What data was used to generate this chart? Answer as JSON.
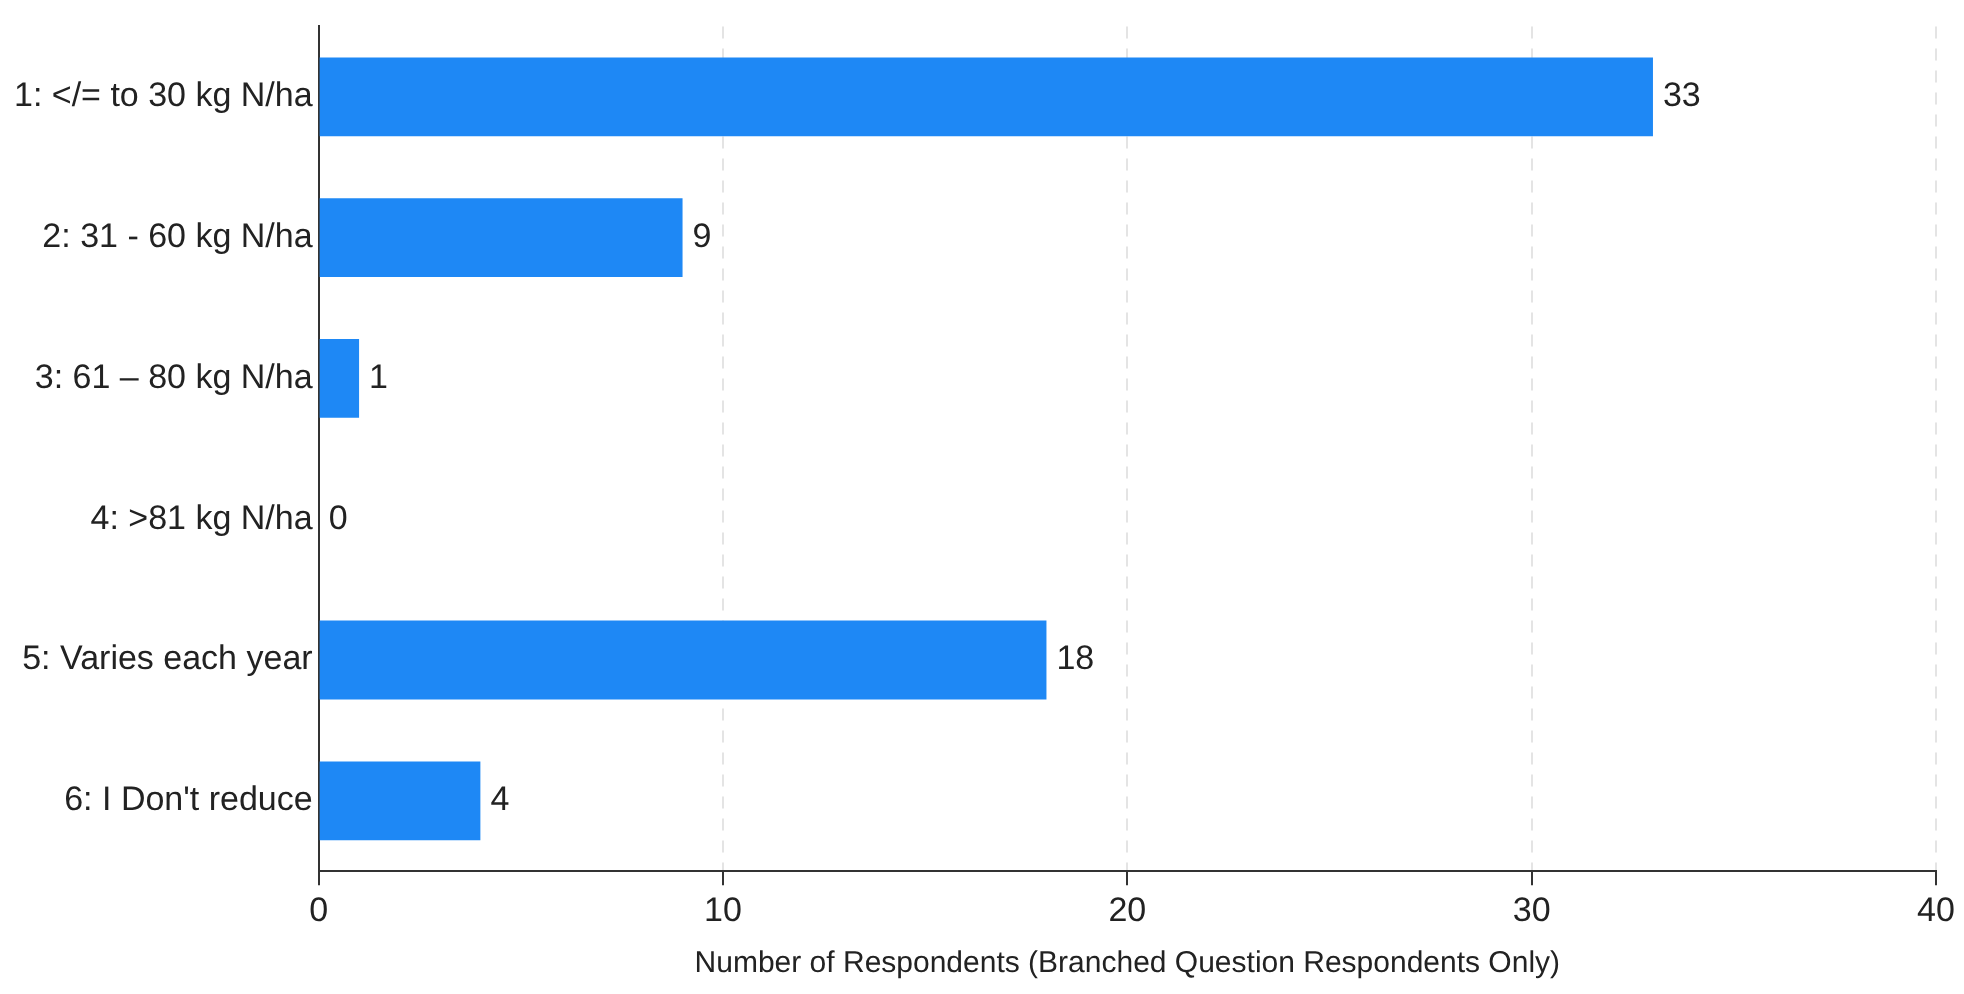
{
  "chart_data": {
    "type": "bar",
    "orientation": "horizontal",
    "xlabel": "Number of Respondents (Branched Question Respondents Only)",
    "categories": [
      "1: </= to 30 kg N/ha",
      "2: 31 - 60 kg N/ha",
      "3: 61 – 80 kg N/ha",
      "4: >81 kg N/ha",
      "5: Varies each year",
      "6: I Don't reduce"
    ],
    "values": [
      33,
      9,
      1,
      0,
      18,
      4
    ],
    "color": "#1e88f5",
    "xlim": [
      0,
      40
    ],
    "xticks": [
      0,
      10,
      20,
      30,
      40
    ],
    "grid": "x",
    "data_labels": true
  }
}
